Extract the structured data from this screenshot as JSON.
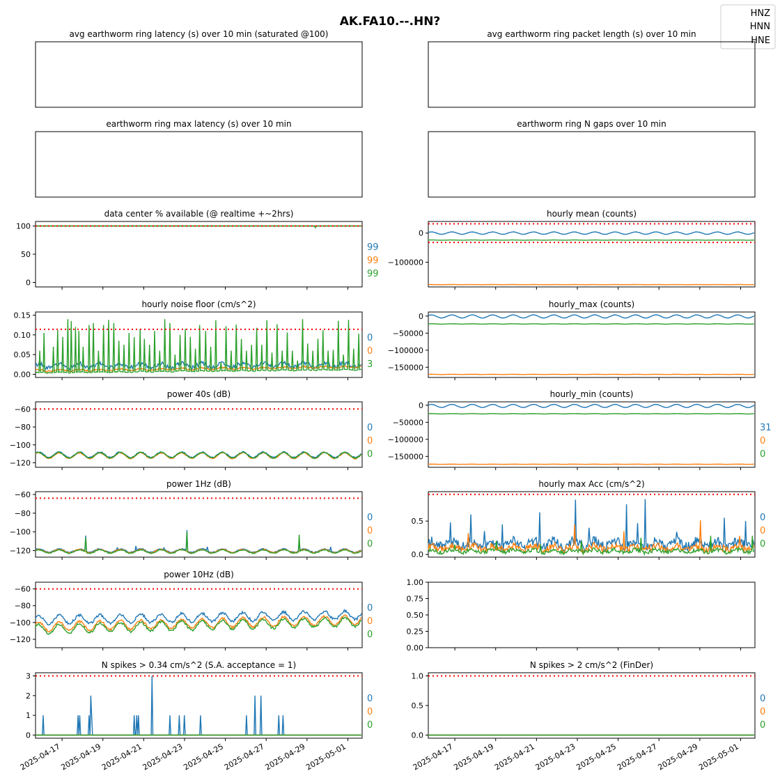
{
  "figure": {
    "title": "AK.FA10.--.HN?",
    "legend": {
      "entries": [
        "HNZ",
        "HNN",
        "HNE"
      ],
      "placement": "top-right"
    },
    "series_colors": {
      "HNZ": "#1f77b4",
      "HNN": "#ff7f0e",
      "HNE": "#2ca02c"
    },
    "threshold_color": "#ff0000",
    "x_dates": [
      "2025-04-17",
      "2025-04-19",
      "2025-04-21",
      "2025-04-23",
      "2025-04-25",
      "2025-04-27",
      "2025-04-29",
      "2025-05-01"
    ]
  },
  "chart_data": [
    {
      "id": "latency_avg",
      "type": "line",
      "title": "avg earthworm ring latency (s)   over 10 min (saturated @100)",
      "xlim": [
        "2025-04-15T16:00",
        "2025-05-01T16:00"
      ],
      "empty": true,
      "series": []
    },
    {
      "id": "packet_len",
      "type": "line",
      "title": "avg earthworm ring packet length (s)   over 10 min",
      "xlim": [
        "2025-04-15T16:00",
        "2025-05-01T16:00"
      ],
      "empty": true,
      "series": []
    },
    {
      "id": "latency_max",
      "type": "line",
      "title": "earthworm ring max latency (s)   over 10 min",
      "xlim": [
        "2025-04-15T16:00",
        "2025-05-01T16:00"
      ],
      "empty": true,
      "series": []
    },
    {
      "id": "ngaps",
      "type": "line",
      "title": "earthworm ring N gaps   over 10 min",
      "xlim": [
        "2025-04-15T16:00",
        "2025-05-01T16:00"
      ],
      "empty": true,
      "series": []
    },
    {
      "id": "pct_avail",
      "type": "line",
      "title": "data center % available (@ realtime +~2hrs)",
      "ylim": [
        -8,
        108
      ],
      "yticks": [
        0,
        50,
        100
      ],
      "yticklabels": [
        "0",
        "50",
        "100"
      ],
      "thresholds": [
        100
      ],
      "side_labels": [
        "99",
        "99",
        "99"
      ],
      "series": [
        {
          "channel": "HNZ",
          "base": 100,
          "amp": 0,
          "period": 1,
          "noise": 0
        },
        {
          "channel": "HNN",
          "base": 100,
          "amp": 0,
          "period": 1,
          "noise": 0
        },
        {
          "channel": "HNE",
          "base": 100,
          "amp": 0,
          "period": 1,
          "noise": 0,
          "dips": [
            [
              13.7,
              97
            ]
          ]
        }
      ]
    },
    {
      "id": "hourly_mean",
      "type": "line",
      "title": "hourly mean (counts)",
      "ylim": [
        -185000,
        40000
      ],
      "yticks": [
        0,
        -100000
      ],
      "yticklabels": [
        "0",
        "−100000"
      ],
      "thresholds": [
        32000,
        -32000
      ],
      "side_labels": [],
      "series": [
        {
          "channel": "HNZ",
          "base": 0,
          "amp": 4000,
          "period": 1,
          "noise": 300
        },
        {
          "channel": "HNN",
          "base": -177000,
          "amp": 200,
          "period": 1,
          "noise": 200
        },
        {
          "channel": "HNE",
          "base": -24000,
          "amp": 300,
          "period": 1,
          "noise": 150
        }
      ]
    },
    {
      "id": "noise_floor",
      "type": "line",
      "title": "hourly noise floor (cm/s^2)",
      "ylim": [
        -0.008,
        0.158
      ],
      "yticks": [
        0,
        0.05,
        0.1,
        0.15
      ],
      "yticklabels": [
        "0.00",
        "0.05",
        "0.10",
        "0.15"
      ],
      "thresholds": [
        0.114
      ],
      "side_labels": [
        "0",
        "0",
        "3"
      ],
      "series": [
        {
          "channel": "HNZ",
          "base": 0.021,
          "amp": 0.005,
          "period": 1,
          "noise": 0.005,
          "trend": 0.004
        },
        {
          "channel": "HNN",
          "base": 0.009,
          "amp": 0.002,
          "period": 1,
          "noise": 0.002,
          "trend": 0.01
        },
        {
          "channel": "HNE",
          "base": 0.004,
          "amp": 0.001,
          "period": 1,
          "noise": 0.001,
          "trend": 0.008,
          "spikes": [
            [
              0.8,
              0.06
            ],
            [
              1.6,
              0.105
            ],
            [
              3.5,
              0.07
            ],
            [
              4.4,
              0.112
            ],
            [
              5.3,
              0.095
            ],
            [
              6.3,
              0.14
            ],
            [
              7.0,
              0.135
            ],
            [
              7.8,
              0.12
            ],
            [
              8.5,
              0.11
            ],
            [
              9.4,
              0.07
            ],
            [
              10.5,
              0.125
            ],
            [
              11.4,
              0.13
            ],
            [
              12.4,
              0.06
            ],
            [
              13.4,
              0.125
            ],
            [
              14.3,
              0.138
            ],
            [
              15.4,
              0.13
            ],
            [
              16.4,
              0.085
            ],
            [
              17.4,
              0.075
            ],
            [
              18.4,
              0.105
            ],
            [
              19.4,
              0.094
            ],
            [
              20.5,
              0.115
            ],
            [
              21.4,
              0.09
            ],
            [
              22.4,
              0.075
            ],
            [
              23.4,
              0.11
            ],
            [
              24.4,
              0.06
            ],
            [
              25.4,
              0.14
            ],
            [
              26.4,
              0.13
            ],
            [
              27.4,
              0.05
            ],
            [
              28.4,
              0.1
            ],
            [
              29.4,
              0.115
            ],
            [
              30.4,
              0.095
            ],
            [
              31.4,
              0.065
            ],
            [
              32.2,
              0.125
            ],
            [
              33.3,
              0.11
            ],
            [
              34.4,
              0.07
            ],
            [
              35.3,
              0.137
            ],
            [
              36.3,
              0.03
            ],
            [
              37.4,
              0.122
            ],
            [
              38.4,
              0.06
            ],
            [
              39.4,
              0.126
            ],
            [
              40.4,
              0.09
            ],
            [
              41.4,
              0.06
            ],
            [
              42.4,
              0.075
            ],
            [
              43.4,
              0.118
            ],
            [
              44.4,
              0.075
            ],
            [
              45.4,
              0.137
            ],
            [
              46.4,
              0.055
            ],
            [
              47.4,
              0.127
            ],
            [
              48.4,
              0.06
            ],
            [
              49.4,
              0.106
            ],
            [
              50.4,
              0.06
            ],
            [
              51.4,
              0.035
            ],
            [
              52.4,
              0.14
            ],
            [
              53.4,
              0.078
            ],
            [
              54.4,
              0.06
            ],
            [
              55.4,
              0.09
            ],
            [
              56.4,
              0.112
            ],
            [
              57.4,
              0.06
            ],
            [
              58.4,
              0.062
            ],
            [
              59.4,
              0.136
            ],
            [
              60.4,
              0.05
            ],
            [
              61.4,
              0.138
            ],
            [
              62.4,
              0.065
            ],
            [
              63.4,
              0.103
            ]
          ]
        }
      ]
    },
    {
      "id": "hourly_max",
      "type": "line",
      "title": "hourly_max (counts)",
      "ylim": [
        -180000,
        12000
      ],
      "yticks": [
        0,
        -50000,
        -100000,
        -150000
      ],
      "yticklabels": [
        "0",
        "−50000",
        "−100000",
        "−150000"
      ],
      "thresholds": [],
      "side_labels": [],
      "series": [
        {
          "channel": "HNZ",
          "base": -1000,
          "amp": 4500,
          "period": 1,
          "noise": 300
        },
        {
          "channel": "HNN",
          "base": -171000,
          "amp": 300,
          "period": 1,
          "noise": 200
        },
        {
          "channel": "HNE",
          "base": -23000,
          "amp": 500,
          "period": 1,
          "noise": 200
        }
      ]
    },
    {
      "id": "power_40s",
      "type": "line",
      "title": "power 40s (dB)",
      "ylim": [
        -125,
        -52
      ],
      "yticks": [
        -60,
        -80,
        -100,
        -120
      ],
      "yticklabels": [
        "−60",
        "−80",
        "−100",
        "−120"
      ],
      "thresholds": [
        -60
      ],
      "side_labels": [
        "0",
        "0",
        "0"
      ],
      "series": [
        {
          "channel": "HNZ",
          "base": -111,
          "amp": 3,
          "period": 1,
          "noise": 0.6
        },
        {
          "channel": "HNN",
          "base": -112,
          "amp": 3.2,
          "period": 1,
          "noise": 0.6
        },
        {
          "channel": "HNE",
          "base": -111.5,
          "amp": 3.1,
          "period": 1,
          "noise": 0.6
        }
      ]
    },
    {
      "id": "hourly_min",
      "type": "line",
      "title": "hourly_min (counts)",
      "ylim": [
        -182000,
        10000
      ],
      "yticks": [
        0,
        -50000,
        -100000,
        -150000
      ],
      "yticklabels": [
        "0",
        "−50000",
        "−100000",
        "−150000"
      ],
      "thresholds": [],
      "side_labels": [
        "31",
        "0",
        "0"
      ],
      "series": [
        {
          "channel": "HNZ",
          "base": -2000,
          "amp": 4500,
          "period": 1,
          "noise": 300
        },
        {
          "channel": "HNN",
          "base": -173000,
          "amp": 300,
          "period": 1,
          "noise": 200
        },
        {
          "channel": "HNE",
          "base": -25000,
          "amp": 500,
          "period": 1,
          "noise": 200
        }
      ]
    },
    {
      "id": "power_1hz",
      "type": "line",
      "title": "power 1Hz (dB)",
      "ylim": [
        -127,
        -57
      ],
      "yticks": [
        -60,
        -80,
        -100,
        -120
      ],
      "yticklabels": [
        "−60",
        "−80",
        "−100",
        "−120"
      ],
      "thresholds": [
        -64
      ],
      "side_labels": [
        "0",
        "0",
        "0"
      ],
      "series": [
        {
          "channel": "HNZ",
          "base": -120,
          "amp": 1.8,
          "period": 1,
          "noise": 0.5,
          "spikes": [
            [
              9.8,
              -104
            ],
            [
              16.0,
              -117
            ],
            [
              19.6,
              -115
            ],
            [
              25.2,
              -117
            ],
            [
              29.7,
              -98
            ],
            [
              33.6,
              -116
            ],
            [
              51.6,
              -112
            ],
            [
              57.8,
              -116
            ]
          ]
        },
        {
          "channel": "HNN",
          "base": -120.5,
          "amp": 1.8,
          "period": 1,
          "noise": 0.5
        },
        {
          "channel": "HNE",
          "base": -121,
          "amp": 1.8,
          "period": 1,
          "noise": 0.5,
          "spikes": [
            [
              9.8,
              -106
            ],
            [
              29.7,
              -100
            ],
            [
              51.6,
              -103
            ]
          ]
        }
      ]
    },
    {
      "id": "max_acc",
      "type": "line",
      "title": "hourly max Acc (cm/s^2)",
      "ylim": [
        -0.04,
        0.94
      ],
      "yticks": [
        0,
        0.5
      ],
      "yticklabels": [
        "0.0",
        "0.5"
      ],
      "thresholds": [
        0.9
      ],
      "side_labels": [
        "0",
        "0",
        "0"
      ],
      "series": [
        {
          "channel": "HNZ",
          "base": 0.16,
          "amp": 0.04,
          "period": 1,
          "noise": 0.07,
          "spikes": [
            [
              4.3,
              0.48
            ],
            [
              8.3,
              0.6
            ],
            [
              11.0,
              0.35
            ],
            [
              14.5,
              0.45
            ],
            [
              21.8,
              0.63
            ],
            [
              28.9,
              0.82
            ],
            [
              31.5,
              0.4
            ],
            [
              38.8,
              0.75
            ],
            [
              41.0,
              0.47
            ],
            [
              42.5,
              0.83
            ],
            [
              48.6,
              0.34
            ],
            [
              58.0,
              0.55
            ],
            [
              62.2,
              0.5
            ]
          ]
        },
        {
          "channel": "HNN",
          "base": 0.1,
          "amp": 0.03,
          "period": 1,
          "noise": 0.05,
          "spikes": [
            [
              7.8,
              0.32
            ],
            [
              28.6,
              0.45
            ],
            [
              38.4,
              0.35
            ],
            [
              53.3,
              0.51
            ],
            [
              61.0,
              0.28
            ]
          ]
        },
        {
          "channel": "HNE",
          "base": 0.05,
          "amp": 0.02,
          "period": 1,
          "noise": 0.03,
          "spikes": [
            [
              5.1,
              0.15
            ],
            [
              13.3,
              0.2
            ],
            [
              22.0,
              0.15
            ],
            [
              30.0,
              0.2
            ],
            [
              41.6,
              0.25
            ],
            [
              55.4,
              0.28
            ],
            [
              63.5,
              0.28
            ]
          ]
        }
      ]
    },
    {
      "id": "power_10hz",
      "type": "line",
      "title": "power 10Hz (dB)",
      "ylim": [
        -130,
        -52
      ],
      "yticks": [
        -60,
        -80,
        -100,
        -120
      ],
      "yticklabels": [
        "−60",
        "−80",
        "−100",
        "−120"
      ],
      "thresholds": [
        -60
      ],
      "side_labels": [
        "0",
        "0",
        "0"
      ],
      "series": [
        {
          "channel": "HNZ",
          "base": -97,
          "amp": 5,
          "period": 1,
          "noise": 1.5,
          "trend": 6
        },
        {
          "channel": "HNN",
          "base": -105,
          "amp": 5.5,
          "period": 1,
          "noise": 1.3,
          "trend": 8
        },
        {
          "channel": "HNE",
          "base": -108,
          "amp": 5.5,
          "period": 1,
          "noise": 1.3,
          "trend": 9
        }
      ]
    },
    {
      "id": "blank",
      "type": "line",
      "title": "",
      "ylim": [
        0,
        1
      ],
      "yticks": [
        0,
        0.25,
        0.5,
        0.75,
        1
      ],
      "yticklabels": [
        "0.00",
        "0.25",
        "0.50",
        "0.75",
        "1.00"
      ],
      "thresholds": [],
      "side_labels": [],
      "series": []
    },
    {
      "id": "spikes_034",
      "type": "line",
      "title": "N spikes > 0.34 cm/s^2 (S.A. acceptance = 1)",
      "ylim": [
        -0.16,
        3.16
      ],
      "yticks": [
        0,
        1,
        2,
        3
      ],
      "yticklabels": [
        "0",
        "1",
        "2",
        "3"
      ],
      "thresholds": [
        3
      ],
      "side_labels": [
        "0",
        "0",
        "0"
      ],
      "xticklabels": true,
      "series": [
        {
          "channel": "HNZ",
          "base": 0,
          "amp": 0,
          "period": 1,
          "noise": 0,
          "spikes": [
            [
              1.5,
              1
            ],
            [
              8.3,
              1
            ],
            [
              8.7,
              1
            ],
            [
              10.5,
              1
            ],
            [
              10.8,
              2
            ],
            [
              11.0,
              1
            ],
            [
              19.4,
              1
            ],
            [
              19.8,
              1
            ],
            [
              20.2,
              1
            ],
            [
              22.8,
              3
            ],
            [
              26.4,
              1
            ],
            [
              28.1,
              1
            ],
            [
              29.1,
              1
            ],
            [
              32.3,
              1
            ],
            [
              41.3,
              1
            ],
            [
              43.0,
              2
            ],
            [
              44.2,
              2
            ],
            [
              47.6,
              1
            ],
            [
              48.5,
              1
            ]
          ]
        },
        {
          "channel": "HNN",
          "base": 0,
          "amp": 0,
          "period": 1,
          "noise": 0
        },
        {
          "channel": "HNE",
          "base": 0,
          "amp": 0,
          "period": 1,
          "noise": 0
        }
      ]
    },
    {
      "id": "spikes_2",
      "type": "line",
      "title": "N spikes > 2 cm/s^2 (FinDer)",
      "ylim": [
        -0.053,
        1.053
      ],
      "yticks": [
        0,
        0.5,
        1
      ],
      "yticklabels": [
        "0.0",
        "0.5",
        "1.0"
      ],
      "thresholds": [
        1
      ],
      "side_labels": [
        "0",
        "0",
        "0"
      ],
      "xticklabels": true,
      "series": [
        {
          "channel": "HNZ",
          "base": 0,
          "amp": 0,
          "period": 1,
          "noise": 0
        },
        {
          "channel": "HNN",
          "base": 0,
          "amp": 0,
          "period": 1,
          "noise": 0
        },
        {
          "channel": "HNE",
          "base": 0,
          "amp": 0,
          "period": 1,
          "noise": 0
        }
      ]
    }
  ]
}
